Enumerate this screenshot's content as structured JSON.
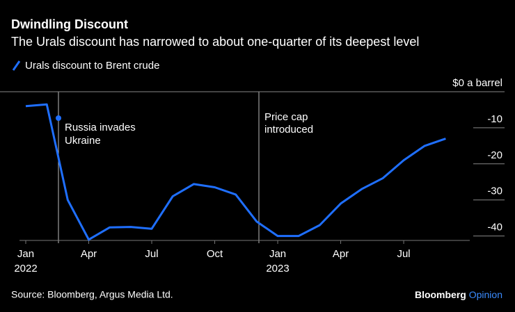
{
  "chart_data": {
    "type": "line",
    "title": "Dwindling Discount",
    "subtitle": "The Urals discount has narrowed to about one-quarter of its deepest level",
    "x": [
      "2022-01",
      "2022-02",
      "2022-03",
      "2022-04",
      "2022-05",
      "2022-06",
      "2022-07",
      "2022-08",
      "2022-09",
      "2022-10",
      "2022-11",
      "2022-12",
      "2023-01",
      "2023-02",
      "2023-03",
      "2023-04",
      "2023-05",
      "2023-06",
      "2023-07",
      "2023-08",
      "2023-09"
    ],
    "series": [
      {
        "name": "Urals discount to Brent crude",
        "color": "#1f6fff",
        "values": [
          -4,
          -3.5,
          -30,
          -41,
          -37.6,
          -37.5,
          -38,
          -29,
          -25.6,
          -26.5,
          -28.5,
          -36,
          -40,
          -40,
          -37,
          -31,
          -27,
          -24,
          -19,
          -15,
          -13
        ]
      }
    ],
    "xlim": [
      "2022-01",
      "2023-10"
    ],
    "xticks": [
      {
        "value": "2022-01",
        "label": "Jan",
        "year": "2022"
      },
      {
        "value": "2022-04",
        "label": "Apr"
      },
      {
        "value": "2022-07",
        "label": "Jul"
      },
      {
        "value": "2022-10",
        "label": "Oct"
      },
      {
        "value": "2023-01",
        "label": "Jan",
        "year": "2023"
      },
      {
        "value": "2023-04",
        "label": "Apr"
      },
      {
        "value": "2023-07",
        "label": "Jul"
      }
    ],
    "ylim": [
      -42,
      0
    ],
    "yticks": [
      {
        "value": 0,
        "label": "$0 a barrel"
      },
      -10,
      -20,
      -30,
      -40
    ],
    "annotations": [
      {
        "text": [
          "Russia invades",
          "Ukraine"
        ]
      },
      {
        "text": [
          "Price cap",
          "introduced"
        ]
      }
    ],
    "source": "Source: Bloomberg, Argus Media Ltd.",
    "brand": [
      "Bloomberg",
      "Opinion"
    ]
  }
}
